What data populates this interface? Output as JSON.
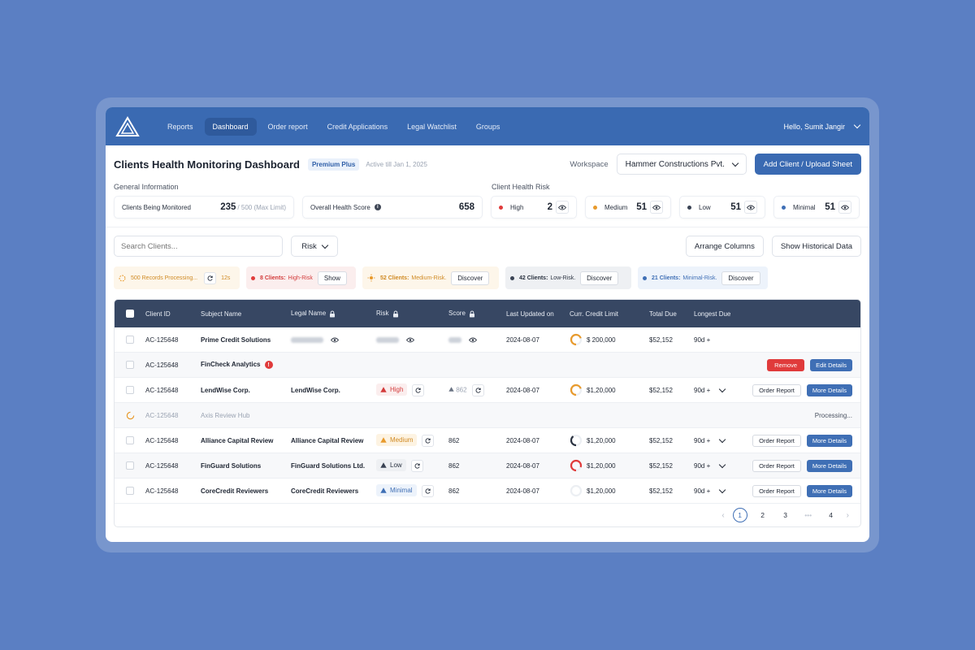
{
  "nav": {
    "items": [
      "Reports",
      "Dashboard",
      "Order report",
      "Credit Applications",
      "Legal Watchlist",
      "Groups"
    ],
    "active_index": 1,
    "user_greeting": "Hello, Sumit Jangir"
  },
  "header": {
    "title": "Clients Health Monitoring Dashboard",
    "plan_badge": "Premium Plus",
    "active_till": "Active till Jan 1, 2025",
    "workspace_label": "Workspace",
    "workspace_value": "Hammer Constructions Pvt.",
    "add_button": "Add Client / Upload Sheet"
  },
  "general": {
    "label": "General Information",
    "monitored_label": "Clients Being Monitored",
    "monitored_value": "235",
    "monitored_limit": "/ 500 (Max Limit)",
    "health_label": "Overall Health Score",
    "health_value": "658"
  },
  "health_risk": {
    "label": "Client Health Risk",
    "items": [
      {
        "label": "High",
        "value": "2",
        "color": "#e03b3b"
      },
      {
        "label": "Medium",
        "value": "51",
        "color": "#e89a2c"
      },
      {
        "label": "Low",
        "value": "51",
        "color": "#3a4354"
      },
      {
        "label": "Minimal",
        "value": "51",
        "color": "#3f6fb5"
      }
    ]
  },
  "toolbar": {
    "search_placeholder": "Search Clients...",
    "risk_filter": "Risk",
    "arrange_columns": "Arrange Columns",
    "historical": "Show Historical Data"
  },
  "pills": {
    "processing": {
      "text": "500 Records Processing...",
      "time": "12s"
    },
    "high": {
      "count": "8 Clients:",
      "label": "High-Risk",
      "button": "Show"
    },
    "medium": {
      "count": "52 Clients:",
      "label": "Medium-Risk.",
      "button": "Discover"
    },
    "low": {
      "count": "42 Clients:",
      "label": "Low-Risk.",
      "button": "Discover"
    },
    "minimal": {
      "count": "21 Clients:",
      "label": "Minimal-Risk.",
      "button": "Discover"
    }
  },
  "table": {
    "headers": [
      "Client ID",
      "Subject Name",
      "Legal Name",
      "Risk",
      "Score",
      "Last Updated on",
      "Curr. Credit Limit",
      "Total Due",
      "Longest Due"
    ],
    "buttons": {
      "order_report": "Order Report",
      "more_details": "More Details",
      "remove": "Remove",
      "edit_details": "Edit Details",
      "processing": "Processing..."
    },
    "rows": [
      {
        "id": "AC-125648",
        "subject": "Prime Credit Solutions",
        "legal": "",
        "risk": "",
        "score": "",
        "updated": "2024-08-07",
        "limit": "$ 200,000",
        "due": "$52,152",
        "longest": "90d +",
        "gauge_fraction": 0.7,
        "gauge_color": "#e89a2c"
      },
      {
        "id": "AC-125648",
        "subject": "FinCheck Analytics"
      },
      {
        "id": "AC-125648",
        "subject": "LendWise Corp.",
        "legal": "LendWise Corp.",
        "risk": "High",
        "score": "862",
        "updated": "2024-08-07",
        "limit": "$1,20,000",
        "due": "$52,152",
        "longest": "90d +",
        "gauge_fraction": 0.7,
        "gauge_color": "#e89a2c"
      },
      {
        "id": "AC-125648",
        "subject": "Axis Review Hub"
      },
      {
        "id": "AC-125648",
        "subject": "Alliance Capital Review",
        "legal": "Alliance Capital Review",
        "risk": "Medium",
        "score": "862",
        "updated": "2024-08-07",
        "limit": "$1,20,000",
        "due": "$52,152",
        "longest": "90d +",
        "gauge_fraction": 0.4,
        "gauge_color": "#2a3240"
      },
      {
        "id": "AC-125648",
        "subject": "FinGuard Solutions",
        "legal": "FinGuard Solutions Ltd.",
        "risk": "Low",
        "score": "862",
        "updated": "2024-08-07",
        "limit": "$1,20,000",
        "due": "$52,152",
        "longest": "90d +",
        "gauge_fraction": 0.8,
        "gauge_color": "#e03b3b"
      },
      {
        "id": "AC-125648",
        "subject": "CoreCredit Reviewers",
        "legal": "CoreCredit Reviewers",
        "risk": "Minimal",
        "score": "862",
        "updated": "2024-08-07",
        "limit": "$1,20,000",
        "due": "$52,152",
        "longest": "90d +",
        "gauge_fraction": 0.0,
        "gauge_color": "#e6e9ee"
      }
    ]
  },
  "pagination": {
    "pages": [
      "1",
      "2",
      "3",
      "4"
    ],
    "ellipsis": "•••",
    "current": "1"
  }
}
